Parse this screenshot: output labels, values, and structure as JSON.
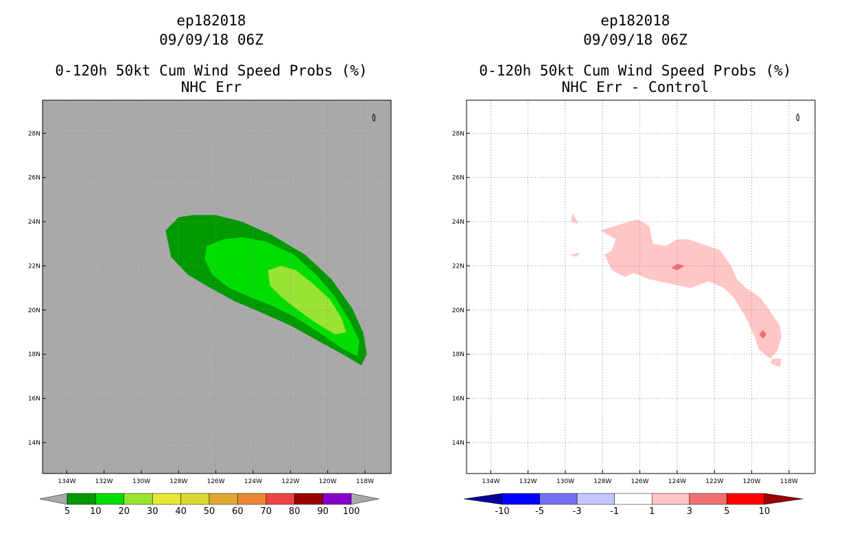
{
  "chart_data": [
    {
      "type": "heatmap",
      "panel": "left",
      "title_lines": [
        "ep182018",
        "09/09/18 06Z",
        "0-120h 50kt Cum Wind Speed Probs (%)",
        "NHC Err"
      ],
      "x_ticks": [
        "134W",
        "132W",
        "130W",
        "128W",
        "126W",
        "124W",
        "122W",
        "120W",
        "118W"
      ],
      "y_ticks": [
        "28N",
        "26N",
        "24N",
        "22N",
        "20N",
        "18N",
        "16N",
        "14N"
      ],
      "xlim": [
        -135.3,
        -116.6
      ],
      "ylim": [
        12.6,
        29.5
      ],
      "background_color": "#a9a9a9",
      "grid": true,
      "contours": [
        {
          "level": 5,
          "color": "#009900",
          "points": [
            [
              -128.7,
              23.6
            ],
            [
              -128.0,
              24.2
            ],
            [
              -127.2,
              24.3
            ],
            [
              -126.0,
              24.3
            ],
            [
              -124.6,
              24.0
            ],
            [
              -123.0,
              23.4
            ],
            [
              -121.2,
              22.5
            ],
            [
              -119.8,
              21.4
            ],
            [
              -118.7,
              20.1
            ],
            [
              -118.1,
              19.0
            ],
            [
              -117.9,
              18.0
            ],
            [
              -118.2,
              17.5
            ],
            [
              -119.2,
              18.0
            ],
            [
              -120.5,
              18.6
            ],
            [
              -122.0,
              19.3
            ],
            [
              -123.6,
              19.9
            ],
            [
              -125.0,
              20.4
            ],
            [
              -126.3,
              21.0
            ],
            [
              -127.5,
              21.6
            ],
            [
              -128.4,
              22.4
            ]
          ]
        },
        {
          "level": 10,
          "color": "#00dd00",
          "points": [
            [
              -126.5,
              22.9
            ],
            [
              -125.6,
              23.2
            ],
            [
              -124.6,
              23.3
            ],
            [
              -123.3,
              23.1
            ],
            [
              -121.8,
              22.5
            ],
            [
              -120.6,
              21.6
            ],
            [
              -119.6,
              20.6
            ],
            [
              -118.8,
              19.5
            ],
            [
              -118.3,
              18.6
            ],
            [
              -118.4,
              17.9
            ],
            [
              -119.3,
              18.3
            ],
            [
              -120.5,
              19.0
            ],
            [
              -121.8,
              19.7
            ],
            [
              -123.0,
              20.2
            ],
            [
              -124.2,
              20.6
            ],
            [
              -125.3,
              21.0
            ],
            [
              -126.2,
              21.6
            ],
            [
              -126.6,
              22.3
            ]
          ]
        },
        {
          "level": 20,
          "color": "#99e333",
          "points": [
            [
              -123.2,
              21.8
            ],
            [
              -122.5,
              22.0
            ],
            [
              -121.7,
              21.8
            ],
            [
              -120.8,
              21.2
            ],
            [
              -119.9,
              20.5
            ],
            [
              -119.3,
              19.7
            ],
            [
              -119.0,
              19.0
            ],
            [
              -119.6,
              18.9
            ],
            [
              -120.6,
              19.4
            ],
            [
              -121.6,
              20.0
            ],
            [
              -122.5,
              20.6
            ],
            [
              -123.1,
              21.1
            ]
          ]
        }
      ],
      "colorbar": {
        "labels": [
          "5",
          "10",
          "20",
          "30",
          "40",
          "50",
          "60",
          "70",
          "80",
          "90",
          "100"
        ],
        "colors": [
          "#009900",
          "#00dd00",
          "#99e333",
          "#e8e833",
          "#d9d933",
          "#e0a833",
          "#ee8833",
          "#ee4444",
          "#990000",
          "#8800cc"
        ],
        "end_colors": [
          "#a9a9a9",
          "#a9a9a9"
        ]
      }
    },
    {
      "type": "heatmap",
      "panel": "right",
      "title_lines": [
        "ep182018",
        "09/09/18 06Z",
        "0-120h 50kt Cum Wind Speed Probs (%)",
        "NHC Err - Control"
      ],
      "x_ticks": [
        "134W",
        "132W",
        "130W",
        "128W",
        "126W",
        "124W",
        "122W",
        "120W",
        "118W"
      ],
      "y_ticks": [
        "28N",
        "26N",
        "24N",
        "22N",
        "20N",
        "18N",
        "16N",
        "14N"
      ],
      "xlim": [
        -135.3,
        -116.6
      ],
      "ylim": [
        12.6,
        29.5
      ],
      "background_color": "#ffffff",
      "grid": true,
      "contours": [
        {
          "level": 1,
          "color": "#ffc6c6",
          "points": [
            [
              -128.1,
              23.6
            ],
            [
              -127.0,
              23.9
            ],
            [
              -126.1,
              24.1
            ],
            [
              -125.5,
              23.8
            ],
            [
              -125.3,
              23.0
            ],
            [
              -124.6,
              22.9
            ],
            [
              -124.0,
              23.2
            ],
            [
              -123.4,
              23.2
            ],
            [
              -122.7,
              23.0
            ],
            [
              -121.7,
              22.7
            ],
            [
              -121.1,
              22.0
            ],
            [
              -120.8,
              21.4
            ],
            [
              -120.3,
              21.0
            ],
            [
              -119.6,
              20.6
            ],
            [
              -119.3,
              20.3
            ],
            [
              -118.9,
              19.8
            ],
            [
              -118.5,
              19.3
            ],
            [
              -118.4,
              18.8
            ],
            [
              -118.6,
              18.2
            ],
            [
              -119.0,
              17.8
            ],
            [
              -119.6,
              18.2
            ],
            [
              -119.9,
              18.9
            ],
            [
              -120.4,
              19.8
            ],
            [
              -121.0,
              20.6
            ],
            [
              -121.5,
              21.0
            ],
            [
              -122.3,
              21.3
            ],
            [
              -123.3,
              21.0
            ],
            [
              -124.4,
              21.2
            ],
            [
              -125.5,
              21.4
            ],
            [
              -126.4,
              21.7
            ],
            [
              -127.2,
              22.1
            ],
            [
              -127.6,
              22.5
            ],
            [
              -127.3,
              23.2
            ]
          ]
        },
        {
          "level": 1,
          "color": "#ffc6c6",
          "points": [
            [
              -127.9,
              22.5
            ],
            [
              -127.1,
              22.9
            ],
            [
              -126.6,
              22.2
            ],
            [
              -126.0,
              21.8
            ],
            [
              -126.8,
              21.5
            ],
            [
              -127.5,
              21.8
            ]
          ]
        },
        {
          "level": 1,
          "color": "#ffc6c6",
          "points": [
            [
              -129.6,
              24.4
            ],
            [
              -129.3,
              23.9
            ],
            [
              -129.7,
              24.0
            ]
          ]
        },
        {
          "level": 1,
          "color": "#ffc6c6",
          "points": [
            [
              -129.8,
              22.5
            ],
            [
              -129.2,
              22.6
            ],
            [
              -129.4,
              22.4
            ]
          ]
        },
        {
          "level": 1,
          "color": "#ffc6c6",
          "points": [
            [
              -118.9,
              17.8
            ],
            [
              -118.4,
              17.8
            ],
            [
              -118.5,
              17.4
            ],
            [
              -119.0,
              17.6
            ]
          ]
        },
        {
          "level": 3,
          "color": "#f07070",
          "points": [
            [
              -124.0,
              22.1
            ],
            [
              -123.6,
              22.0
            ],
            [
              -124.0,
              21.8
            ],
            [
              -124.3,
              21.9
            ]
          ]
        },
        {
          "level": 3,
          "color": "#f07070",
          "points": [
            [
              -119.4,
              19.1
            ],
            [
              -119.2,
              18.9
            ],
            [
              -119.4,
              18.7
            ],
            [
              -119.6,
              18.9
            ]
          ]
        }
      ],
      "colorbar": {
        "labels": [
          "-10",
          "-5",
          "-3",
          "-1",
          "1",
          "3",
          "5",
          "10"
        ],
        "colors": [
          "#0000ff",
          "#7070f0",
          "#c6c6ff",
          "#ffffff",
          "#ffc6c6",
          "#f07070",
          "#ff0000"
        ],
        "end_colors": [
          "#000099",
          "#990000"
        ]
      }
    }
  ]
}
